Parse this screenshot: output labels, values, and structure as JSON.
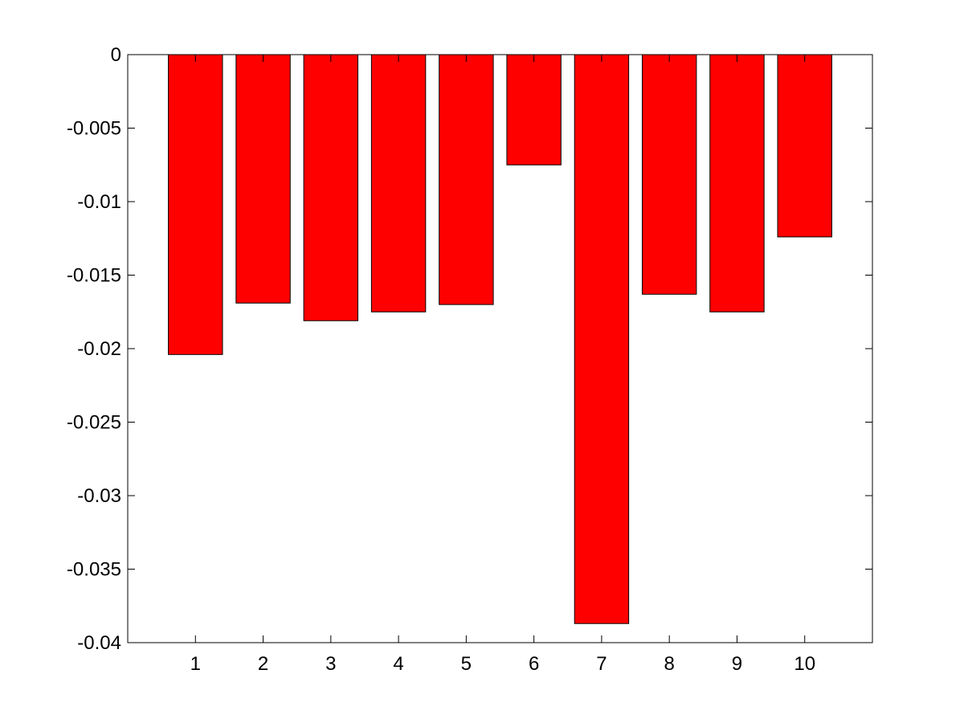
{
  "chart_data": {
    "type": "bar",
    "title": "",
    "xlabel": "",
    "ylabel": "",
    "categories": [
      "1",
      "2",
      "3",
      "4",
      "5",
      "6",
      "7",
      "8",
      "9",
      "10"
    ],
    "values": [
      -0.0204,
      -0.0169,
      -0.0181,
      -0.0175,
      -0.017,
      -0.0075,
      -0.0387,
      -0.0163,
      -0.0175,
      -0.0124
    ],
    "ylim": [
      -0.04,
      0
    ],
    "yticks": [
      "0",
      "-0.005",
      "-0.01",
      "-0.015",
      "-0.02",
      "-0.025",
      "-0.03",
      "-0.035",
      "-0.04"
    ],
    "grid": false,
    "legend": "none",
    "bar_color": "#ff0000",
    "edge_color": "#000000"
  }
}
